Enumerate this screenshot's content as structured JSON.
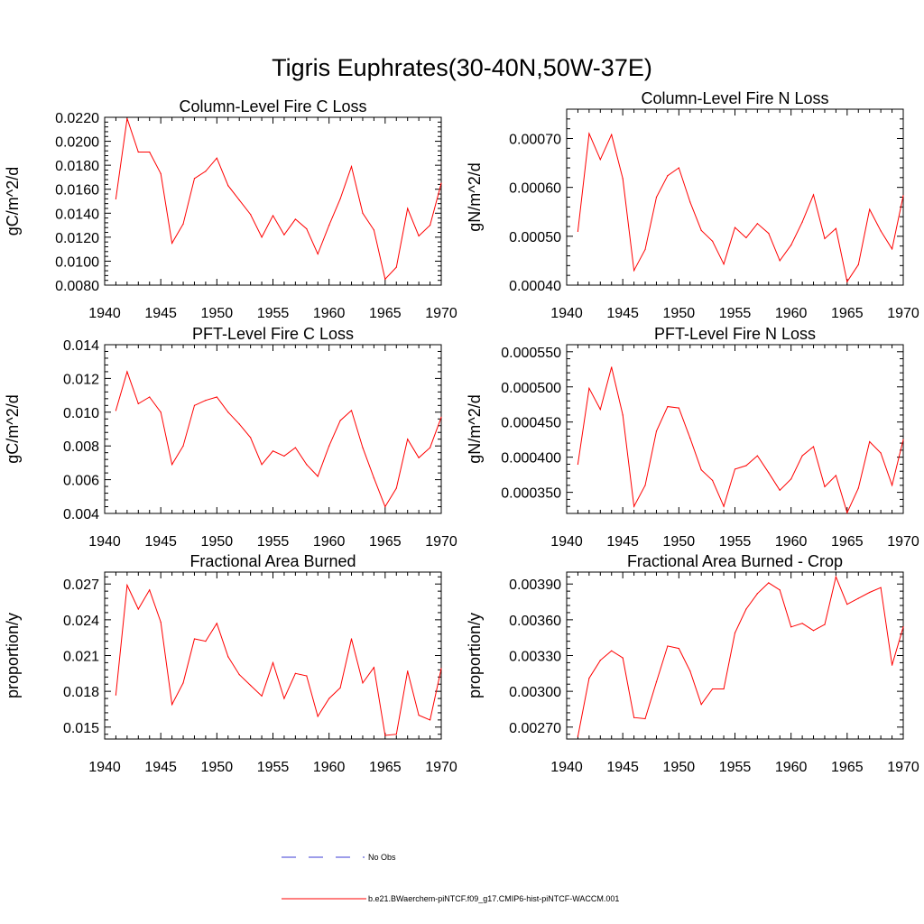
{
  "figure": {
    "title": "Tigris Euphrates(30-40N,50W-37E)"
  },
  "legend": {
    "entries": [
      {
        "label": "No Obs",
        "color": "#3b3bd6",
        "style": "dashed"
      },
      {
        "label": "b.e21.BWaerchem-piNTCF.f09_g17.CMIP6-hist-piNTCF-WACCM.001",
        "color": "#ff0000",
        "style": "solid"
      }
    ]
  },
  "chart_data": [
    {
      "type": "line",
      "title": "Column-Level Fire C Loss",
      "ylabel": "gC/m^2/d",
      "xlim": [
        1940,
        1970
      ],
      "ylim": [
        0.008,
        0.022
      ],
      "x_ticks": [
        "1940",
        "1945",
        "1950",
        "1955",
        "1960",
        "1965",
        "1970"
      ],
      "y_ticks": [
        "0.0080",
        "0.0100",
        "0.0120",
        "0.0140",
        "0.0160",
        "0.0180",
        "0.0200",
        "0.0220"
      ],
      "grid": false,
      "series": [
        {
          "color": "#ff0000",
          "x": [
            1941,
            1942,
            1943,
            1944,
            1945,
            1946,
            1947,
            1948,
            1949,
            1950,
            1951,
            1952,
            1953,
            1954,
            1955,
            1956,
            1957,
            1958,
            1959,
            1960,
            1961,
            1962,
            1963,
            1964,
            1965,
            1966,
            1967,
            1968,
            1969,
            1970
          ],
          "y": [
            0.0152,
            0.0219,
            0.0191,
            0.0191,
            0.0173,
            0.0115,
            0.0131,
            0.0169,
            0.0175,
            0.0186,
            0.0163,
            0.0151,
            0.0139,
            0.012,
            0.0138,
            0.0122,
            0.0135,
            0.0127,
            0.0106,
            0.013,
            0.0152,
            0.0179,
            0.014,
            0.0126,
            0.0085,
            0.0095,
            0.0144,
            0.0121,
            0.013,
            0.0165
          ]
        }
      ]
    },
    {
      "type": "line",
      "title": "Column-Level Fire N Loss",
      "ylabel": "gN/m^2/d",
      "xlim": [
        1940,
        1970
      ],
      "ylim": [
        0.0004,
        0.00076
      ],
      "x_ticks": [
        "1940",
        "1945",
        "1950",
        "1955",
        "1960",
        "1965",
        "1970"
      ],
      "y_ticks": [
        "0.00040",
        "0.00050",
        "0.00060",
        "0.00070"
      ],
      "grid": false,
      "series": [
        {
          "color": "#ff0000",
          "x": [
            1941,
            1942,
            1943,
            1944,
            1945,
            1946,
            1947,
            1948,
            1949,
            1950,
            1951,
            1952,
            1953,
            1954,
            1955,
            1956,
            1957,
            1958,
            1959,
            1960,
            1961,
            1962,
            1963,
            1964,
            1965,
            1966,
            1967,
            1968,
            1969,
            1970
          ],
          "y": [
            0.00051,
            0.00071,
            0.000657,
            0.000708,
            0.000618,
            0.00043,
            0.000473,
            0.00058,
            0.000624,
            0.00064,
            0.00057,
            0.000512,
            0.00049,
            0.000443,
            0.000518,
            0.000497,
            0.000526,
            0.000506,
            0.00045,
            0.000482,
            0.000529,
            0.000585,
            0.000495,
            0.000516,
            0.000407,
            0.000442,
            0.000555,
            0.000511,
            0.000474,
            0.000583
          ]
        }
      ]
    },
    {
      "type": "line",
      "title": "PFT-Level Fire C Loss",
      "ylabel": "gC/m^2/d",
      "xlim": [
        1940,
        1970
      ],
      "ylim": [
        0.004,
        0.014
      ],
      "x_ticks": [
        "1940",
        "1945",
        "1950",
        "1955",
        "1960",
        "1965",
        "1970"
      ],
      "y_ticks": [
        "0.004",
        "0.006",
        "0.008",
        "0.010",
        "0.012",
        "0.014"
      ],
      "grid": false,
      "series": [
        {
          "color": "#ff0000",
          "x": [
            1941,
            1942,
            1943,
            1944,
            1945,
            1946,
            1947,
            1948,
            1949,
            1950,
            1951,
            1952,
            1953,
            1954,
            1955,
            1956,
            1957,
            1958,
            1959,
            1960,
            1961,
            1962,
            1963,
            1964,
            1965,
            1966,
            1967,
            1968,
            1969,
            1970
          ],
          "y": [
            0.0101,
            0.0124,
            0.0105,
            0.0109,
            0.01,
            0.0069,
            0.008,
            0.0104,
            0.0107,
            0.0109,
            0.01,
            0.0093,
            0.0085,
            0.0069,
            0.0077,
            0.0074,
            0.0079,
            0.0069,
            0.0062,
            0.008,
            0.0095,
            0.0101,
            0.0079,
            0.0061,
            0.0044,
            0.0055,
            0.0084,
            0.0073,
            0.0079,
            0.0097
          ]
        }
      ]
    },
    {
      "type": "line",
      "title": "PFT-Level Fire N Loss",
      "ylabel": "gN/m^2/d",
      "xlim": [
        1940,
        1970
      ],
      "ylim": [
        0.00032,
        0.00056
      ],
      "x_ticks": [
        "1940",
        "1945",
        "1950",
        "1955",
        "1960",
        "1965",
        "1970"
      ],
      "y_ticks": [
        "0.000350",
        "0.000400",
        "0.000450",
        "0.000500",
        "0.000550"
      ],
      "grid": false,
      "series": [
        {
          "color": "#ff0000",
          "x": [
            1941,
            1942,
            1943,
            1944,
            1945,
            1946,
            1947,
            1948,
            1949,
            1950,
            1951,
            1952,
            1953,
            1954,
            1955,
            1956,
            1957,
            1958,
            1959,
            1960,
            1961,
            1962,
            1963,
            1964,
            1965,
            1966,
            1967,
            1968,
            1969,
            1970
          ],
          "y": [
            0.00039,
            0.000498,
            0.000468,
            0.000528,
            0.00046,
            0.00033,
            0.00036,
            0.000437,
            0.000472,
            0.00047,
            0.000427,
            0.000382,
            0.000367,
            0.00033,
            0.000383,
            0.000388,
            0.000402,
            0.000378,
            0.000353,
            0.000369,
            0.000402,
            0.000415,
            0.000358,
            0.000374,
            0.000321,
            0.000356,
            0.000422,
            0.000406,
            0.00036,
            0.000425
          ]
        }
      ]
    },
    {
      "type": "line",
      "title": "Fractional Area Burned",
      "ylabel": "proportion/y",
      "xlim": [
        1940,
        1970
      ],
      "ylim": [
        0.014,
        0.028
      ],
      "x_ticks": [
        "1940",
        "1945",
        "1950",
        "1955",
        "1960",
        "1965",
        "1970"
      ],
      "y_ticks": [
        "0.015",
        "0.018",
        "0.021",
        "0.024",
        "0.027"
      ],
      "grid": false,
      "series": [
        {
          "color": "#ff0000",
          "x": [
            1941,
            1942,
            1943,
            1944,
            1945,
            1946,
            1947,
            1948,
            1949,
            1950,
            1951,
            1952,
            1953,
            1954,
            1955,
            1956,
            1957,
            1958,
            1959,
            1960,
            1961,
            1962,
            1963,
            1964,
            1965,
            1966,
            1967,
            1968,
            1969,
            1970
          ],
          "y": [
            0.0177,
            0.0269,
            0.0249,
            0.0265,
            0.0238,
            0.0169,
            0.0187,
            0.0224,
            0.0222,
            0.0237,
            0.0209,
            0.0194,
            0.0185,
            0.0176,
            0.0204,
            0.0174,
            0.0195,
            0.0193,
            0.0159,
            0.0174,
            0.0183,
            0.0224,
            0.0187,
            0.02,
            0.0143,
            0.0144,
            0.0197,
            0.016,
            0.0156,
            0.0199
          ]
        }
      ]
    },
    {
      "type": "line",
      "title": "Fractional Area Burned - Crop",
      "ylabel": "proportion/y",
      "xlim": [
        1940,
        1970
      ],
      "ylim": [
        0.0026,
        0.004
      ],
      "x_ticks": [
        "1940",
        "1945",
        "1950",
        "1955",
        "1960",
        "1965",
        "1970"
      ],
      "y_ticks": [
        "0.00270",
        "0.00300",
        "0.00330",
        "0.00360",
        "0.00390"
      ],
      "grid": false,
      "series": [
        {
          "color": "#ff0000",
          "x": [
            1941,
            1942,
            1943,
            1944,
            1945,
            1946,
            1947,
            1948,
            1949,
            1950,
            1951,
            1952,
            1953,
            1954,
            1955,
            1956,
            1957,
            1958,
            1959,
            1960,
            1961,
            1962,
            1963,
            1964,
            1965,
            1966,
            1967,
            1968,
            1969,
            1970
          ],
          "y": [
            0.00262,
            0.00311,
            0.00326,
            0.00334,
            0.00328,
            0.00278,
            0.00277,
            0.00308,
            0.00338,
            0.00336,
            0.00317,
            0.00289,
            0.00302,
            0.00302,
            0.00349,
            0.00369,
            0.00382,
            0.00391,
            0.00385,
            0.00354,
            0.00357,
            0.00351,
            0.00356,
            0.00396,
            0.00373,
            0.00378,
            0.00383,
            0.00387,
            0.00322,
            0.00354
          ]
        }
      ]
    }
  ]
}
